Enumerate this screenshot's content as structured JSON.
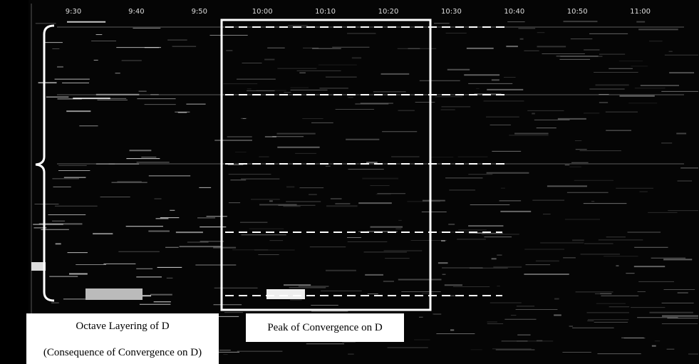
{
  "time_labels": [
    "9:30",
    "9:40",
    "9:50",
    "10:00",
    "10:10",
    "10:20",
    "10:30",
    "10:40",
    "10:50",
    "11:00"
  ],
  "annotations": {
    "left_box": [
      "Octave Layering of D",
      "(Consequence of Convergence on D)"
    ],
    "center_box": "Peak of Convergence on D"
  }
}
